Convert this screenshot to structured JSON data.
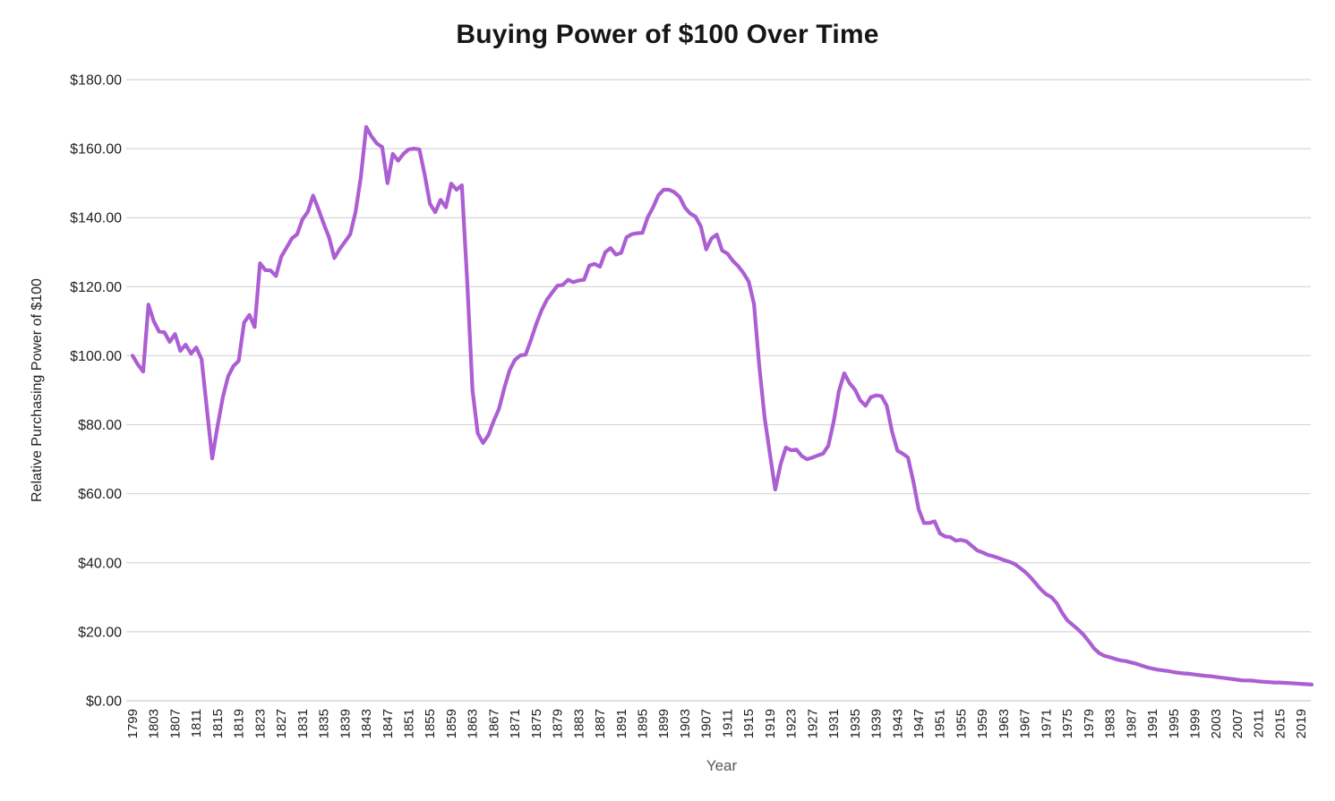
{
  "colors": {
    "line": "#ac5ed3",
    "gridline": "#d6d6d6",
    "axis_line": "#cccccc",
    "title_text": "#161616",
    "tick_text": "#212121",
    "x_axis_title_text": "#595959",
    "background": "#ffffff"
  },
  "chart_data": {
    "type": "line",
    "title": "Buying Power of $100 Over Time",
    "xlabel": "Year",
    "ylabel": "Relative Purchasing Power of $100",
    "ylim": [
      0,
      180
    ],
    "y_tick_interval": 20,
    "grid": "horizontal",
    "legend": "none",
    "y_ticks": [
      {
        "label": "$180.00",
        "value": 180
      },
      {
        "label": "$160.00",
        "value": 160
      },
      {
        "label": "$140.00",
        "value": 140
      },
      {
        "label": "$120.00",
        "value": 120
      },
      {
        "label": "$100.00",
        "value": 100
      },
      {
        "label": "$80.00",
        "value": 80
      },
      {
        "label": "$60.00",
        "value": 60
      },
      {
        "label": "$40.00",
        "value": 40
      },
      {
        "label": "$20.00",
        "value": 20
      },
      {
        "label": "$0.00",
        "value": 0
      }
    ],
    "x_tick_labels": [
      "1799",
      "1803",
      "1807",
      "1811",
      "1815",
      "1819",
      "1823",
      "1827",
      "1831",
      "1835",
      "1839",
      "1843",
      "1847",
      "1851",
      "1855",
      "1859",
      "1863",
      "1867",
      "1871",
      "1875",
      "1879",
      "1883",
      "1887",
      "1891",
      "1895",
      "1899",
      "1903",
      "1907",
      "1911",
      "1915",
      "1919",
      "1923",
      "1927",
      "1931",
      "1935",
      "1939",
      "1943",
      "1947",
      "1951",
      "1955",
      "1959",
      "1963",
      "1967",
      "1971",
      "1975",
      "1979",
      "1983",
      "1987",
      "1991",
      "1995",
      "1999",
      "2003",
      "2007",
      "2011",
      "2015",
      "2019"
    ],
    "series": [
      {
        "name": "Relative Purchasing Power of $100",
        "start_year": 1799,
        "end_year": 2021,
        "values": [
          100.0,
          97.5,
          95.4,
          114.8,
          110.0,
          107.0,
          106.8,
          104.0,
          106.3,
          101.4,
          103.2,
          100.6,
          102.4,
          99.0,
          84.5,
          70.2,
          79.5,
          88.0,
          94.0,
          97.0,
          98.5,
          109.6,
          111.8,
          108.3,
          126.8,
          124.8,
          124.7,
          123.1,
          128.7,
          131.3,
          134.0,
          135.2,
          139.5,
          141.7,
          146.4,
          142.5,
          138.2,
          134.3,
          128.3,
          130.9,
          133.0,
          135.2,
          141.8,
          152.0,
          166.3,
          163.5,
          161.5,
          160.5,
          150.0,
          158.5,
          156.5,
          158.5,
          159.8,
          160.0,
          159.8,
          152.5,
          144.0,
          141.6,
          145.2,
          143.0,
          149.9,
          148.1,
          149.4,
          122.0,
          90.0,
          77.5,
          74.7,
          77.0,
          81.1,
          84.6,
          90.7,
          95.8,
          98.8,
          100.1,
          100.3,
          104.5,
          109.2,
          113.1,
          116.2,
          118.3,
          120.3,
          120.5,
          122.0,
          121.3,
          121.8,
          122.0,
          126.1,
          126.6,
          125.8,
          130.0,
          131.2,
          129.3,
          129.8,
          134.3,
          135.2,
          135.5,
          135.6,
          140.1,
          143.0,
          146.5,
          148.1,
          148.1,
          147.4,
          146.0,
          142.9,
          141.2,
          140.3,
          137.4,
          130.8,
          134.0,
          135.1,
          130.5,
          129.6,
          127.5,
          126.0,
          124.0,
          121.5,
          115.0,
          97.0,
          82.0,
          71.5,
          61.2,
          68.5,
          73.4,
          72.6,
          72.8,
          70.9,
          70.0,
          70.5,
          71.1,
          71.6,
          73.9,
          80.9,
          89.8,
          94.9,
          92.0,
          90.2,
          87.1,
          85.5,
          88.0,
          88.5,
          88.3,
          85.5,
          78.0,
          72.5,
          71.6,
          70.5,
          63.5,
          55.5,
          51.5,
          51.5,
          52.0,
          48.5,
          47.6,
          47.4,
          46.4,
          46.6,
          46.2,
          44.9,
          43.6,
          43.0,
          42.3,
          41.9,
          41.4,
          40.8,
          40.3,
          39.7,
          38.6,
          37.4,
          35.9,
          34.1,
          32.3,
          30.9,
          30.0,
          28.3,
          25.5,
          23.3,
          22.0,
          20.7,
          19.2,
          17.3,
          15.2,
          13.8,
          13.0,
          12.6,
          12.1,
          11.7,
          11.5,
          11.1,
          10.7,
          10.2,
          9.7,
          9.3,
          9.0,
          8.8,
          8.6,
          8.3,
          8.1,
          7.9,
          7.8,
          7.6,
          7.4,
          7.2,
          7.1,
          6.9,
          6.7,
          6.5,
          6.3,
          6.1,
          5.9,
          5.9,
          5.8,
          5.6,
          5.5,
          5.4,
          5.3,
          5.3,
          5.2,
          5.1,
          5.0,
          4.9,
          4.8,
          4.7
        ]
      }
    ]
  }
}
